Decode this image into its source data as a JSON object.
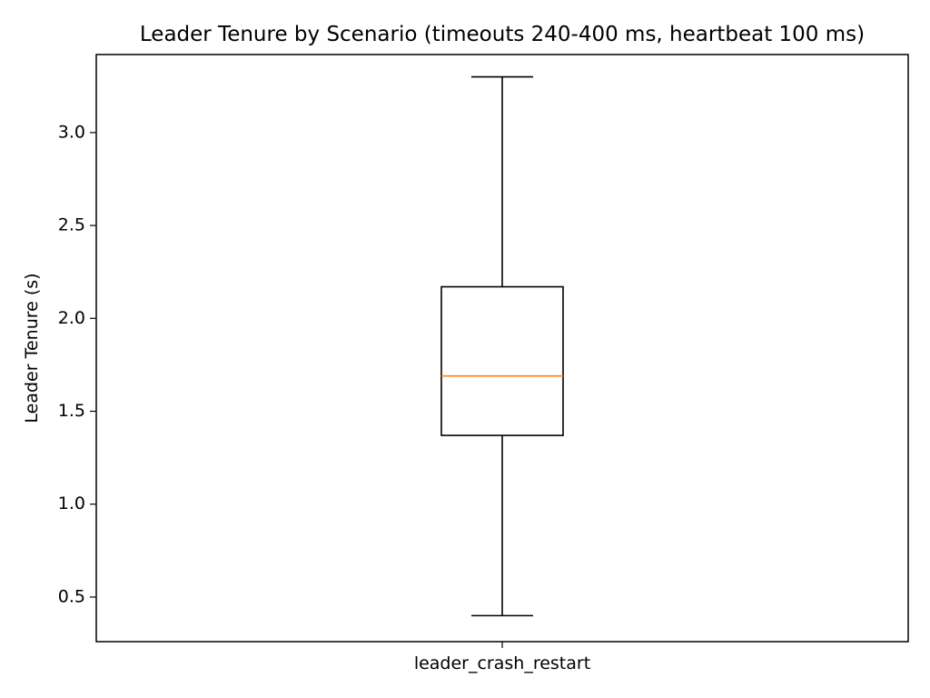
{
  "chart_data": {
    "type": "box",
    "title": "Leader Tenure by Scenario (timeouts 240-400 ms, heartbeat 100 ms)",
    "xlabel": "",
    "ylabel": "Leader Tenure (s)",
    "ylim": [
      0.26,
      3.42
    ],
    "yticks": [
      0.5,
      1.0,
      1.5,
      2.0,
      2.5,
      3.0
    ],
    "ytick_labels": [
      "0.5",
      "1.0",
      "1.5",
      "2.0",
      "2.5",
      "3.0"
    ],
    "categories": [
      "leader_crash_restart"
    ],
    "boxes": [
      {
        "category": "leader_crash_restart",
        "whisker_low": 0.4,
        "q1": 1.37,
        "median": 1.69,
        "q3": 2.17,
        "whisker_high": 3.3
      }
    ],
    "grid": false,
    "colors": {
      "box": "#000000",
      "median": "#ff7f0e"
    }
  }
}
